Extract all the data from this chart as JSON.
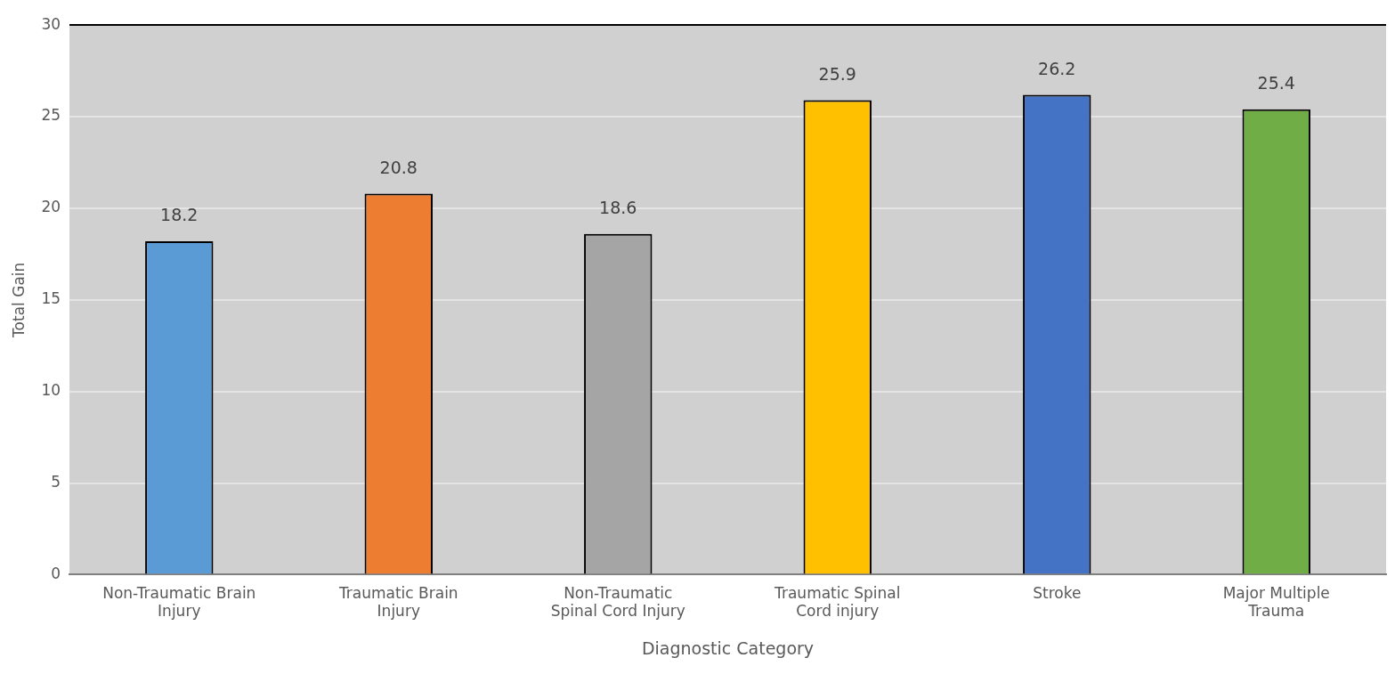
{
  "chart_data": {
    "type": "bar",
    "xlabel": "Diagnostic Category",
    "ylabel": "Total Gain",
    "categories": [
      "Non-Traumatic Brain Injury",
      "Traumatic Brain Injury",
      "Non-Traumatic Spinal Cord Injury",
      "Traumatic Spinal Cord injury",
      "Stroke",
      "Major Multiple Trauma"
    ],
    "values": [
      18.2,
      20.8,
      18.6,
      25.9,
      26.2,
      25.4
    ],
    "colors": [
      "#5b9bd5",
      "#ed7d31",
      "#a5a5a5",
      "#ffc000",
      "#4472c4",
      "#70ad47"
    ],
    "ylim": [
      0,
      30
    ],
    "yticks": [
      0,
      5,
      10,
      15,
      20,
      25,
      30
    ],
    "grid": "y",
    "data_labels": true,
    "legend": false
  }
}
